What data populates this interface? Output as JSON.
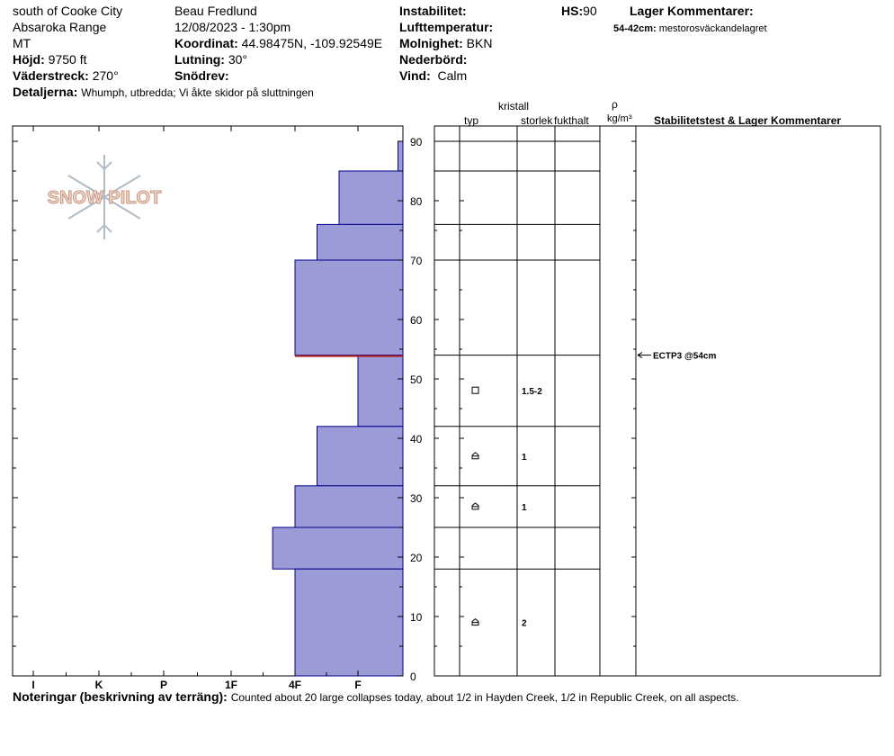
{
  "header": {
    "location": "south of Cooke City",
    "range": "Absaroka Range",
    "state": "MT",
    "elevation_label": "Höjd:",
    "elevation_value": "9750 ft",
    "aspect_label": "Väderstreck:",
    "aspect_value": "270°",
    "details_label": "Detaljerna:",
    "details_value": "Whumph, utbredda;  Vi åkte skidor på sluttningen",
    "observer": "Beau  Fredlund",
    "datetime": "12/08/2023 - 1:30pm",
    "coord_label": "Koordinat:",
    "coord_value": "44.98475N, -109.92549E",
    "slope_label": "Lutning:",
    "slope_value": "30°",
    "snowdrift_label": "Snödrev:",
    "instability_label": "Instabilitet:",
    "airtemp_label": "Lufttemperatur:",
    "cloud_label": "Molnighet:",
    "cloud_value": "BKN",
    "precip_label": "Nederbörd:",
    "wind_label": "Vind:",
    "wind_value": "Calm",
    "hs_label": "HS:",
    "hs_value": "90",
    "layer_comments_label": "Lager Kommentarer:",
    "layer_comment_depth": "54-42cm:",
    "layer_comment_text": "mestorosväckandelagret"
  },
  "table_headers": {
    "crystal": "kristall",
    "type": "typ",
    "size": "storlek",
    "moisture": "fukthalt",
    "density_symbol": "ρ",
    "density_unit": "kg/m³",
    "stability": "Stabilitetstest & Lager Kommentarer"
  },
  "logo_text": "SNOW PILOT",
  "notes": {
    "label": "Noteringar (beskrivning av terräng):",
    "text": "Counted about 20 large collapses today, about 1/2 in Hayden Creek, 1/2 in Republic Creek, on all aspects."
  },
  "colors": {
    "bar_fill": "#9b9bd7",
    "bar_stroke": "#00008b",
    "weak_layer": "#b22222",
    "text": "#000000"
  },
  "chart_data": {
    "type": "bar",
    "orientation": "horizontal",
    "x_categories": [
      "I",
      "K",
      "P",
      "1F",
      "4F",
      "F"
    ],
    "ylim": [
      0,
      90
    ],
    "y_ticks": [
      0,
      10,
      20,
      30,
      40,
      50,
      60,
      70,
      80,
      90
    ],
    "hardness_profile": [
      {
        "top": 90,
        "bottom": 85,
        "hardness_index": 5.65
      },
      {
        "top": 85,
        "bottom": 76,
        "hardness_index": 4.7
      },
      {
        "top": 76,
        "bottom": 70,
        "hardness_index": 4.35
      },
      {
        "top": 70,
        "bottom": 54,
        "hardness_index": 4.0
      },
      {
        "top": 54,
        "bottom": 42,
        "hardness_index": 5.0
      },
      {
        "top": 42,
        "bottom": 32,
        "hardness_index": 4.35
      },
      {
        "top": 32,
        "bottom": 25,
        "hardness_index": 4.0
      },
      {
        "top": 25,
        "bottom": 18,
        "hardness_index": 3.65
      },
      {
        "top": 18,
        "bottom": 0,
        "hardness_index": 4.0
      }
    ],
    "weak_layer_depth": 54,
    "layer_boundaries": [
      85,
      76,
      70,
      54,
      42,
      32,
      25,
      18
    ],
    "layer_rows": [
      {
        "depth": 48,
        "crystal_type": "facets",
        "size": "1.5-2"
      },
      {
        "depth": 37,
        "crystal_type": "depth-hoar",
        "size": "1"
      },
      {
        "depth": 28.5,
        "crystal_type": "depth-hoar",
        "size": "1"
      },
      {
        "depth": 9,
        "crystal_type": "depth-hoar",
        "size": "2"
      }
    ],
    "stability_tests": [
      {
        "depth": 54,
        "label": "ECTP3 @54cm"
      }
    ]
  }
}
